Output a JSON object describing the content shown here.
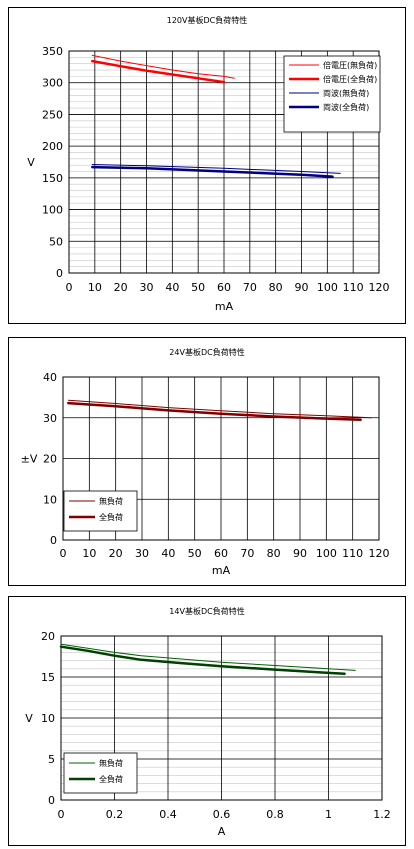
{
  "chart_data": [
    {
      "type": "line",
      "title": "120V基板DC負荷特性",
      "xlabel": "mA",
      "ylabel": "V",
      "xlim": [
        0,
        120
      ],
      "ylim": [
        0,
        350
      ],
      "xticks": [
        0,
        10,
        20,
        30,
        40,
        50,
        60,
        70,
        80,
        90,
        100,
        110,
        120
      ],
      "yticks": [
        0,
        50,
        100,
        150,
        200,
        250,
        300,
        350
      ],
      "grid": true,
      "legend_position": "top-right",
      "series": [
        {
          "name": "倍電圧(無負荷)",
          "color": "#ff0000",
          "width": 1,
          "x": [
            9,
            20,
            30,
            40,
            50,
            60,
            64
          ],
          "y": [
            343,
            334,
            327,
            320,
            314,
            310,
            307
          ]
        },
        {
          "name": "倍電圧(全負荷)",
          "color": "#ff0000",
          "width": 2.5,
          "x": [
            9,
            20,
            30,
            40,
            50,
            60
          ],
          "y": [
            334,
            326,
            319,
            313,
            307,
            301
          ]
        },
        {
          "name": "両波(無負荷)",
          "color": "#000080",
          "width": 1,
          "x": [
            9,
            30,
            60,
            90,
            105
          ],
          "y": [
            171,
            169,
            165,
            160,
            157
          ]
        },
        {
          "name": "両波(全負荷)",
          "color": "#000080",
          "width": 2.5,
          "x": [
            9,
            30,
            60,
            90,
            102
          ],
          "y": [
            167,
            165,
            160,
            155,
            152
          ]
        }
      ]
    },
    {
      "type": "line",
      "title": "24V基板DC負荷特性",
      "xlabel": "mA",
      "ylabel": "±V",
      "xlim": [
        0,
        120
      ],
      "ylim": [
        0,
        40
      ],
      "xticks": [
        0,
        10,
        20,
        30,
        40,
        50,
        60,
        70,
        80,
        90,
        100,
        110,
        120
      ],
      "yticks": [
        0,
        10,
        20,
        30,
        40
      ],
      "grid": true,
      "legend_position": "bottom-left",
      "series": [
        {
          "name": "無負荷",
          "color": "#800000",
          "width": 1,
          "x": [
            2,
            20,
            40,
            60,
            80,
            100,
            117
          ],
          "y": [
            34.3,
            33.5,
            32.5,
            31.7,
            31.0,
            30.5,
            30.0
          ]
        },
        {
          "name": "全負荷",
          "color": "#800000",
          "width": 2.5,
          "x": [
            2,
            20,
            40,
            60,
            80,
            100,
            113
          ],
          "y": [
            33.6,
            32.8,
            31.8,
            31.0,
            30.3,
            29.8,
            29.5
          ]
        }
      ]
    },
    {
      "type": "line",
      "title": "14V基板DC負荷特性",
      "xlabel": "A",
      "ylabel": "V",
      "xlim": [
        0,
        1.2
      ],
      "ylim": [
        0,
        20
      ],
      "xticks": [
        "0",
        "0.2",
        "0.4",
        "0.6",
        "0.8",
        "1",
        "1.2"
      ],
      "yticks": [
        0,
        5,
        10,
        15,
        20
      ],
      "grid": true,
      "legend_position": "bottom-left",
      "series": [
        {
          "name": "無負荷",
          "color": "#006400",
          "width": 1,
          "x": [
            0,
            0.1,
            0.2,
            0.3,
            0.45,
            0.6,
            0.8,
            1.0,
            1.1
          ],
          "y": [
            19.0,
            18.5,
            18.0,
            17.6,
            17.2,
            16.8,
            16.4,
            16.0,
            15.8
          ]
        },
        {
          "name": "全負荷",
          "color": "#004000",
          "width": 2.5,
          "x": [
            0,
            0.1,
            0.2,
            0.3,
            0.45,
            0.6,
            0.8,
            1.0,
            1.06
          ],
          "y": [
            18.7,
            18.2,
            17.6,
            17.1,
            16.7,
            16.3,
            15.9,
            15.5,
            15.4
          ]
        }
      ]
    }
  ]
}
